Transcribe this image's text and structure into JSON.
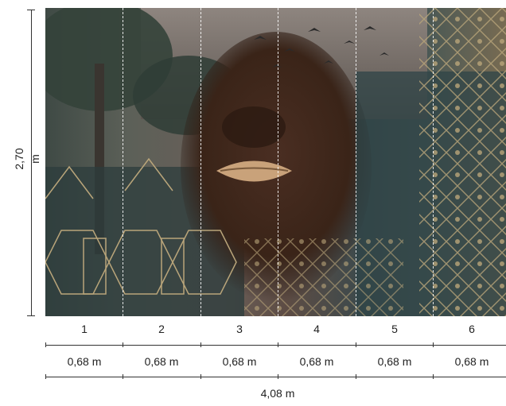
{
  "mural": {
    "height_label": "2,70 m",
    "panels": [
      {
        "number": "1",
        "width": "0,68 m"
      },
      {
        "number": "2",
        "width": "0,68 m"
      },
      {
        "number": "3",
        "width": "0,68 m"
      },
      {
        "number": "4",
        "width": "0,68 m"
      },
      {
        "number": "5",
        "width": "0,68 m"
      },
      {
        "number": "6",
        "width": "0,68 m"
      }
    ],
    "total_width_label": "4,08 m"
  }
}
